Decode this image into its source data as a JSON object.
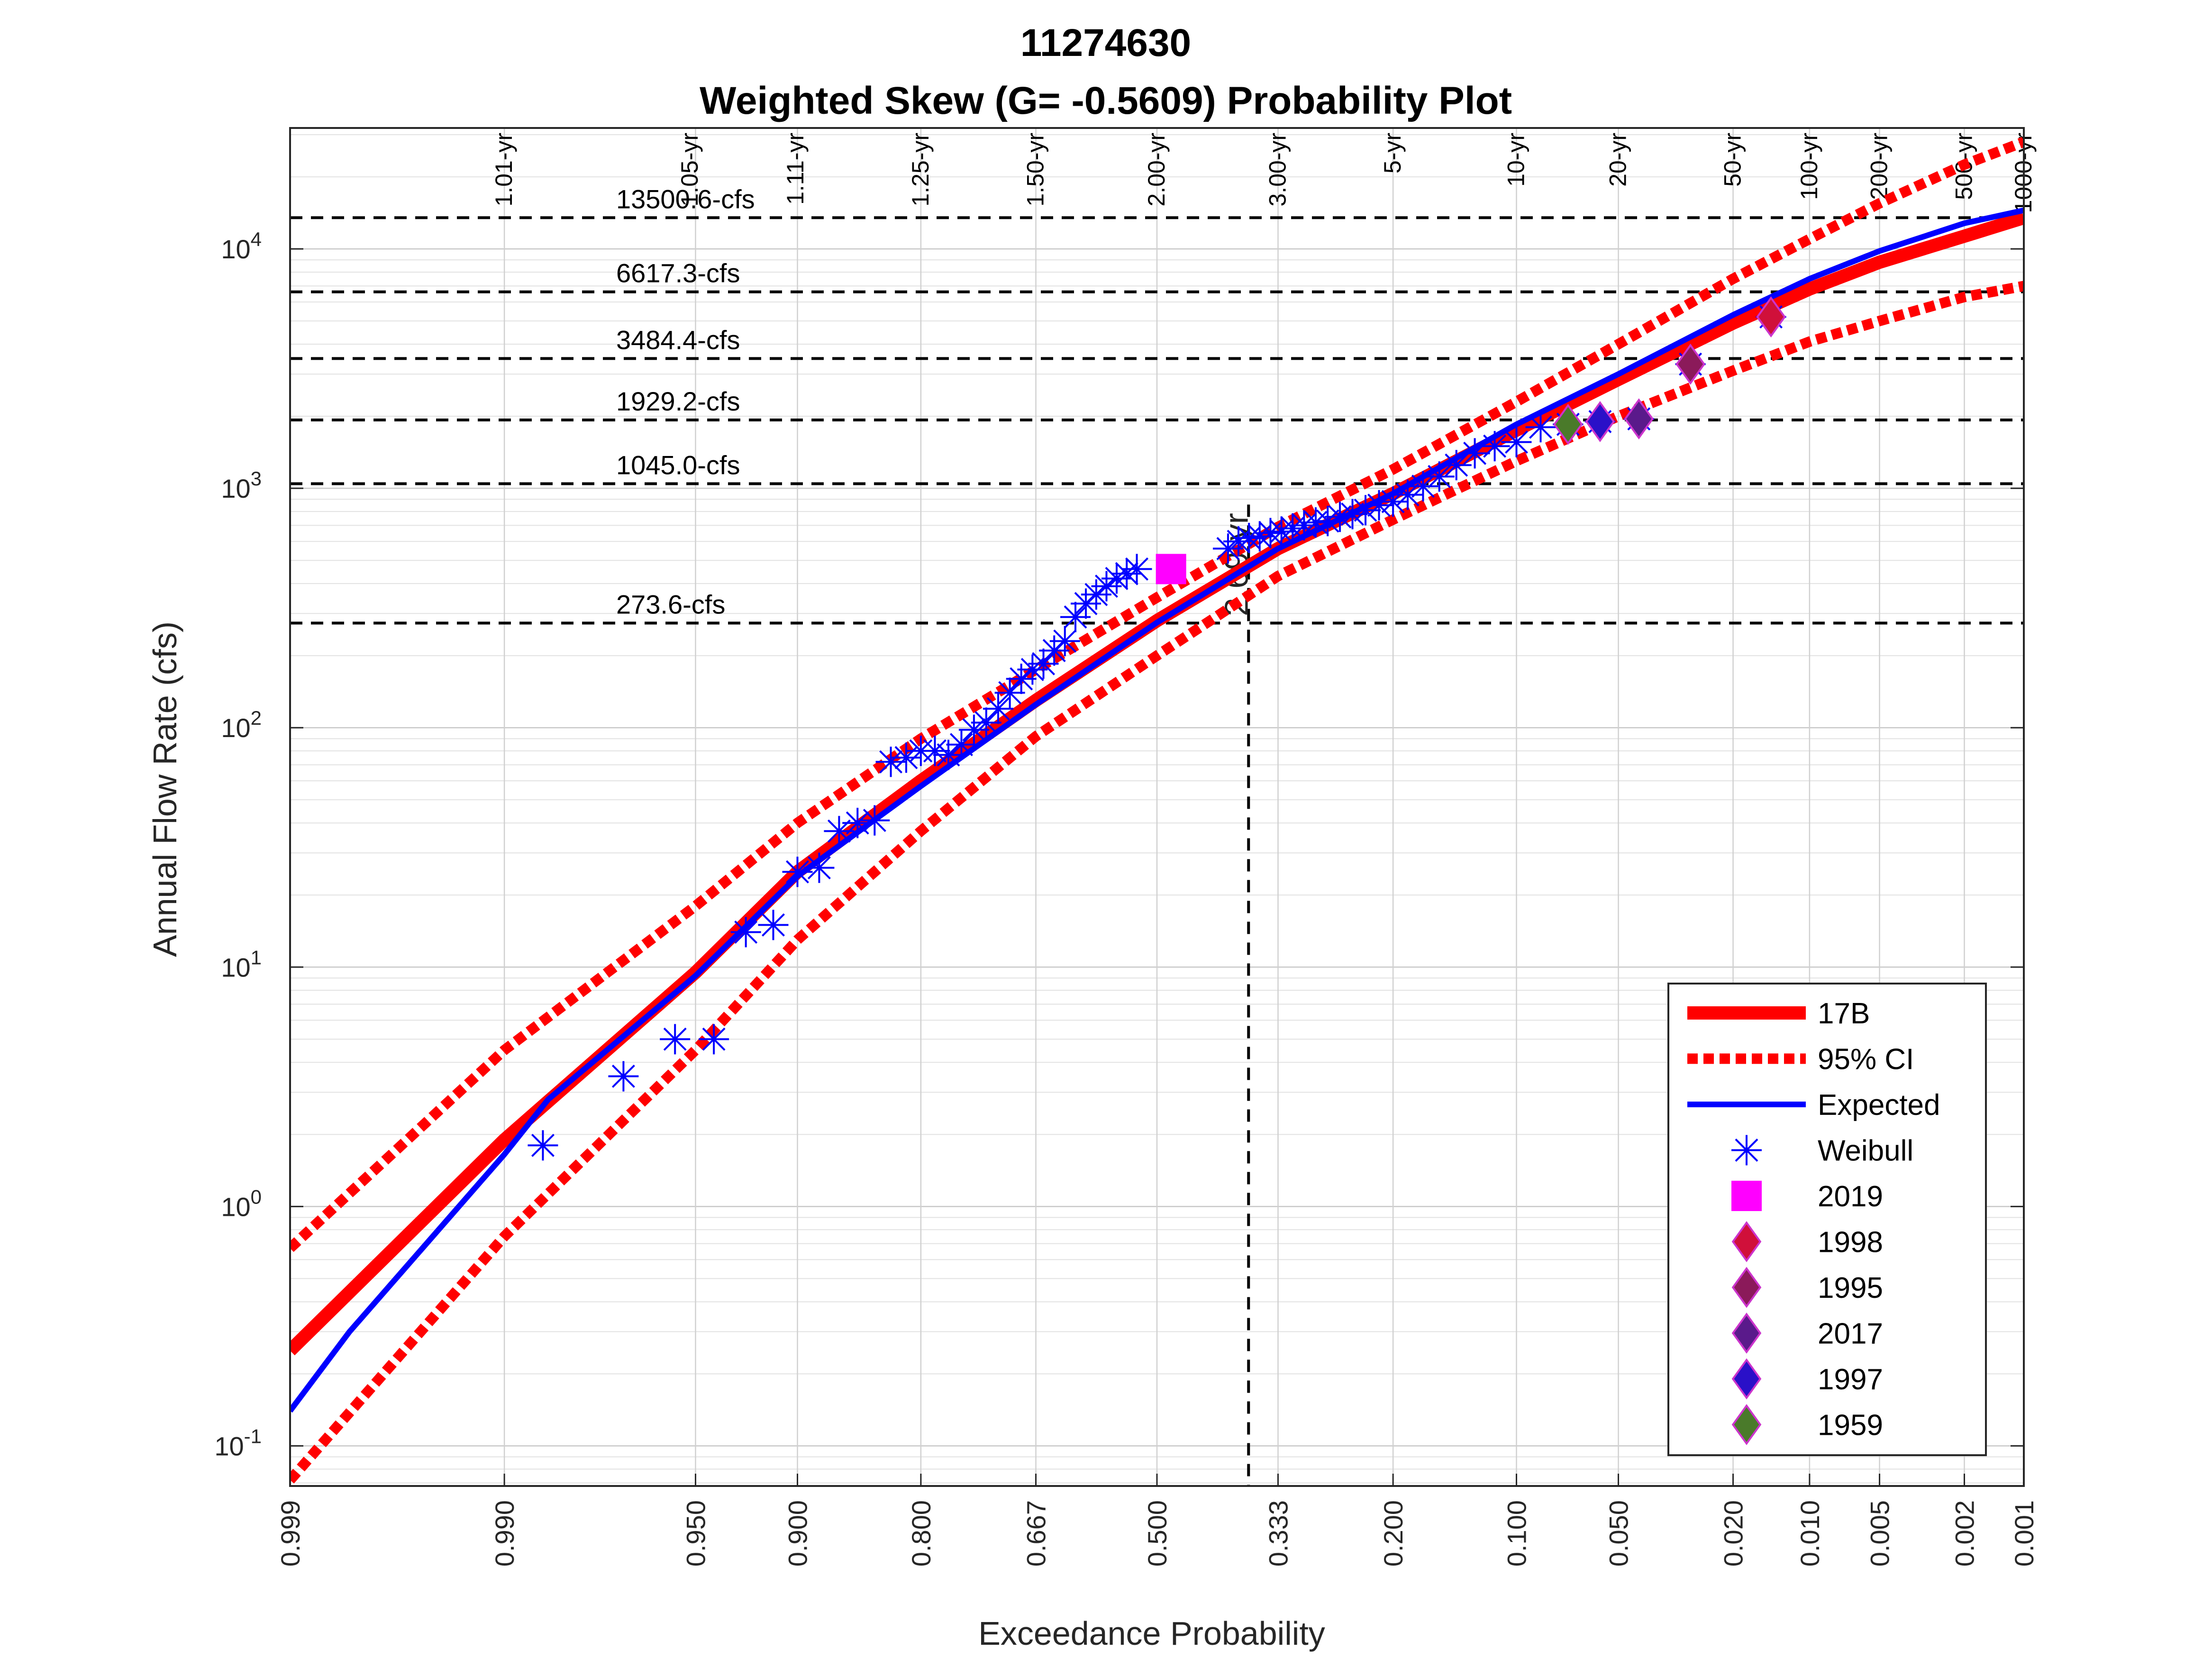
{
  "chart_data": {
    "type": "scatter",
    "title": "11274630",
    "subtitle": "Weighted Skew (G= -0.5609) Probability Plot",
    "xlabel": "Exceedance Probability",
    "ylabel": "Annual Flow Rate (cfs)",
    "x_scale": "normal-probability (reversed)",
    "y_scale": "log",
    "xlim": [
      0.999,
      0.001
    ],
    "ylim": [
      0.068,
      32000
    ],
    "grid": true,
    "legend_position": "bottom-right",
    "x_ticks": [
      {
        "p": 0.999,
        "label": "0.999"
      },
      {
        "p": 0.99,
        "label": "0.990"
      },
      {
        "p": 0.95,
        "label": "0.950"
      },
      {
        "p": 0.9,
        "label": "0.900"
      },
      {
        "p": 0.8,
        "label": "0.800"
      },
      {
        "p": 0.667,
        "label": "0.667"
      },
      {
        "p": 0.5,
        "label": "0.500"
      },
      {
        "p": 0.333,
        "label": "0.333"
      },
      {
        "p": 0.2,
        "label": "0.200"
      },
      {
        "p": 0.1,
        "label": "0.100"
      },
      {
        "p": 0.05,
        "label": "0.050"
      },
      {
        "p": 0.02,
        "label": "0.020"
      },
      {
        "p": 0.01,
        "label": "0.010"
      },
      {
        "p": 0.005,
        "label": "0.005"
      },
      {
        "p": 0.002,
        "label": "0.002"
      },
      {
        "p": 0.001,
        "label": "0.001"
      }
    ],
    "y_ticks": [
      {
        "v": 0.1,
        "base": "10",
        "exp": "-1"
      },
      {
        "v": 1,
        "base": "10",
        "exp": "0"
      },
      {
        "v": 10,
        "base": "10",
        "exp": "1"
      },
      {
        "v": 100,
        "base": "10",
        "exp": "2"
      },
      {
        "v": 1000,
        "base": "10",
        "exp": "3"
      },
      {
        "v": 10000,
        "base": "10",
        "exp": "4"
      }
    ],
    "return_period_labels": [
      {
        "p": 0.99,
        "label": "1.01-yr"
      },
      {
        "p": 0.952,
        "label": "1.05-yr"
      },
      {
        "p": 0.901,
        "label": "1.11-yr"
      },
      {
        "p": 0.8,
        "label": "1.25-yr"
      },
      {
        "p": 0.667,
        "label": "1.50-yr"
      },
      {
        "p": 0.5,
        "label": "2.00-yr"
      },
      {
        "p": 0.333,
        "label": "3.00-yr"
      },
      {
        "p": 0.2,
        "label": "5-yr"
      },
      {
        "p": 0.1,
        "label": "10-yr"
      },
      {
        "p": 0.05,
        "label": "20-yr"
      },
      {
        "p": 0.02,
        "label": "50-yr"
      },
      {
        "p": 0.01,
        "label": "100-yr"
      },
      {
        "p": 0.005,
        "label": "200-yr"
      },
      {
        "p": 0.002,
        "label": "500-yr"
      },
      {
        "p": 0.001,
        "label": "1000-yr"
      }
    ],
    "flow_reference_lines": [
      {
        "value": 13500.6,
        "label": "13500.6-cfs"
      },
      {
        "value": 6617.3,
        "label": "6617.3-cfs"
      },
      {
        "value": 3484.4,
        "label": "3484.4-cfs"
      },
      {
        "value": 1929.2,
        "label": "1929.2-cfs"
      },
      {
        "value": 1045.0,
        "label": "1045.0-cfs"
      },
      {
        "value": 273.6,
        "label": "273.6-cfs"
      }
    ],
    "event_marker": {
      "p": 0.372,
      "label": "2.69-yr"
    },
    "series": [
      {
        "name": "17B",
        "style": "thick-solid",
        "color": "#ff0000",
        "points": [
          [
            0.999,
            0.25
          ],
          [
            0.99,
            1.9
          ],
          [
            0.95,
            9.5
          ],
          [
            0.9,
            25
          ],
          [
            0.8,
            60
          ],
          [
            0.667,
            130
          ],
          [
            0.5,
            280
          ],
          [
            0.333,
            560
          ],
          [
            0.2,
            950
          ],
          [
            0.1,
            1750
          ],
          [
            0.05,
            2850
          ],
          [
            0.02,
            4900
          ],
          [
            0.01,
            6800
          ],
          [
            0.005,
            8800
          ],
          [
            0.002,
            11300
          ],
          [
            0.001,
            13500
          ]
        ]
      },
      {
        "name": "95% CI",
        "style": "thick-dotted",
        "color": "#ff0000",
        "points": [
          [
            0.999,
            0.67
          ],
          [
            0.99,
            4.5
          ],
          [
            0.95,
            18
          ],
          [
            0.9,
            40
          ],
          [
            0.8,
            90
          ],
          [
            0.667,
            175
          ],
          [
            0.5,
            350
          ],
          [
            0.333,
            690
          ],
          [
            0.2,
            1200
          ],
          [
            0.1,
            2300
          ],
          [
            0.05,
            4000
          ],
          [
            0.02,
            7500
          ],
          [
            0.01,
            11000
          ],
          [
            0.005,
            15500
          ],
          [
            0.002,
            22500
          ],
          [
            0.001,
            28000
          ]
        ]
      },
      {
        "name": "",
        "style": "thick-dotted",
        "color": "#ff0000",
        "points": [
          [
            0.999,
            0.072
          ],
          [
            0.99,
            0.75
          ],
          [
            0.95,
            4.5
          ],
          [
            0.9,
            13
          ],
          [
            0.8,
            37
          ],
          [
            0.667,
            92
          ],
          [
            0.5,
            200
          ],
          [
            0.333,
            430
          ],
          [
            0.2,
            740
          ],
          [
            0.1,
            1300
          ],
          [
            0.05,
            2000
          ],
          [
            0.02,
            3100
          ],
          [
            0.01,
            4100
          ],
          [
            0.005,
            5000
          ],
          [
            0.002,
            6300
          ],
          [
            0.001,
            7000
          ]
        ]
      },
      {
        "name": "Expected",
        "style": "solid",
        "color": "#0000ff",
        "points": [
          [
            0.999,
            0.14
          ],
          [
            0.998,
            0.3
          ],
          [
            0.99,
            1.65
          ],
          [
            0.985,
            2.8
          ],
          [
            0.95,
            9.2
          ],
          [
            0.9,
            24
          ],
          [
            0.8,
            57
          ],
          [
            0.667,
            125
          ],
          [
            0.5,
            275
          ],
          [
            0.333,
            560
          ],
          [
            0.2,
            950
          ],
          [
            0.1,
            1850
          ],
          [
            0.05,
            3000
          ],
          [
            0.02,
            5300
          ],
          [
            0.01,
            7500
          ],
          [
            0.005,
            9800
          ],
          [
            0.002,
            12800
          ],
          [
            0.001,
            14500
          ]
        ]
      },
      {
        "name": "Weibull",
        "style": "asterisk",
        "color": "#0000ff",
        "points": [
          [
            0.9857,
            1.8
          ],
          [
            0.9714,
            3.5
          ],
          [
            0.9571,
            5.0
          ],
          [
            0.9429,
            5.0
          ],
          [
            0.9286,
            14
          ],
          [
            0.9143,
            15
          ],
          [
            0.9,
            25
          ],
          [
            0.8857,
            26
          ],
          [
            0.8714,
            37
          ],
          [
            0.8571,
            40
          ],
          [
            0.8429,
            41
          ],
          [
            0.8286,
            72
          ],
          [
            0.8143,
            75
          ],
          [
            0.8,
            80
          ],
          [
            0.7857,
            80
          ],
          [
            0.7714,
            77
          ],
          [
            0.7571,
            85
          ],
          [
            0.7429,
            98
          ],
          [
            0.7286,
            105
          ],
          [
            0.7143,
            120
          ],
          [
            0.7,
            140
          ],
          [
            0.6857,
            160
          ],
          [
            0.6714,
            175
          ],
          [
            0.6571,
            185
          ],
          [
            0.6429,
            210
          ],
          [
            0.6286,
            230
          ],
          [
            0.6143,
            290
          ],
          [
            0.6,
            330
          ],
          [
            0.5857,
            360
          ],
          [
            0.5714,
            390
          ],
          [
            0.5571,
            420
          ],
          [
            0.5429,
            440
          ],
          [
            0.5286,
            460
          ],
          [
            0.4,
            560
          ],
          [
            0.3857,
            600
          ],
          [
            0.3714,
            620
          ],
          [
            0.3571,
            630
          ],
          [
            0.3429,
            650
          ],
          [
            0.3286,
            660
          ],
          [
            0.3143,
            680
          ],
          [
            0.3,
            700
          ],
          [
            0.2857,
            720
          ],
          [
            0.2714,
            730
          ],
          [
            0.2571,
            760
          ],
          [
            0.2429,
            780
          ],
          [
            0.2286,
            810
          ],
          [
            0.2143,
            850
          ],
          [
            0.2,
            880
          ],
          [
            0.1857,
            940
          ],
          [
            0.1714,
            1020
          ],
          [
            0.1571,
            1120
          ],
          [
            0.1429,
            1250
          ],
          [
            0.1286,
            1400
          ],
          [
            0.1143,
            1500
          ],
          [
            0.1,
            1560
          ],
          [
            0.0857,
            1800
          ],
          [
            0.0714,
            1850
          ],
          [
            0.0571,
            1900
          ],
          [
            0.0429,
            1950
          ],
          [
            0.0286,
            3300
          ],
          [
            0.0143,
            5200
          ]
        ]
      },
      {
        "name": "2019",
        "style": "square",
        "color": "#ff00ff",
        "points": [
          [
            0.48,
            460
          ]
        ]
      },
      {
        "name": "1998",
        "style": "diamond",
        "color": "#d0103a",
        "points": [
          [
            0.0143,
            5200
          ]
        ]
      },
      {
        "name": "1995",
        "style": "diamond",
        "color": "#8b1a5a",
        "points": [
          [
            0.0286,
            3300
          ]
        ]
      },
      {
        "name": "2017",
        "style": "diamond",
        "color": "#5a1a8b",
        "points": [
          [
            0.0429,
            1950
          ]
        ]
      },
      {
        "name": "1997",
        "style": "diamond",
        "color": "#2a10c8",
        "points": [
          [
            0.0571,
            1900
          ]
        ]
      },
      {
        "name": "1959",
        "style": "diamond",
        "color": "#4a7a2a",
        "points": [
          [
            0.0714,
            1850
          ]
        ]
      }
    ]
  }
}
